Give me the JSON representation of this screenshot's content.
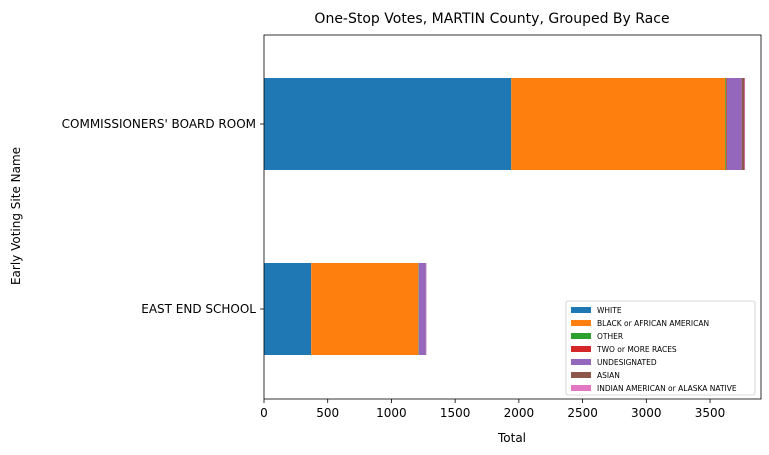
{
  "chart_data": {
    "type": "bar",
    "orientation": "horizontal",
    "stacked": true,
    "title": "One-Stop Votes, MARTIN County, Grouped By Race",
    "xlabel": "Total",
    "ylabel": "Early Voting Site Name",
    "categories": [
      "COMMISSIONERS' BOARD ROOM",
      "EAST END SCHOOL"
    ],
    "xlim": [
      0,
      3900
    ],
    "xticks": [
      0,
      500,
      1000,
      1500,
      2000,
      2500,
      3000,
      3500
    ],
    "grid": false,
    "legend_position": "lower-right",
    "series": [
      {
        "name": "WHITE",
        "color": "#1f77b4",
        "values": [
          1940,
          370
        ]
      },
      {
        "name": "BLACK or AFRICAN AMERICAN",
        "color": "#ff7f0e",
        "values": [
          1680,
          840
        ]
      },
      {
        "name": "OTHER",
        "color": "#2ca02c",
        "values": [
          8,
          3
        ]
      },
      {
        "name": "TWO or MORE RACES",
        "color": "#d62728",
        "values": [
          5,
          2
        ]
      },
      {
        "name": "UNDESIGNATED",
        "color": "#9467bd",
        "values": [
          115,
          55
        ]
      },
      {
        "name": "ASIAN",
        "color": "#8c564b",
        "values": [
          22,
          3
        ]
      },
      {
        "name": "INDIAN AMERICAN or ALASKA NATIVE",
        "color": "#e377c2",
        "values": [
          5,
          2
        ]
      }
    ]
  }
}
